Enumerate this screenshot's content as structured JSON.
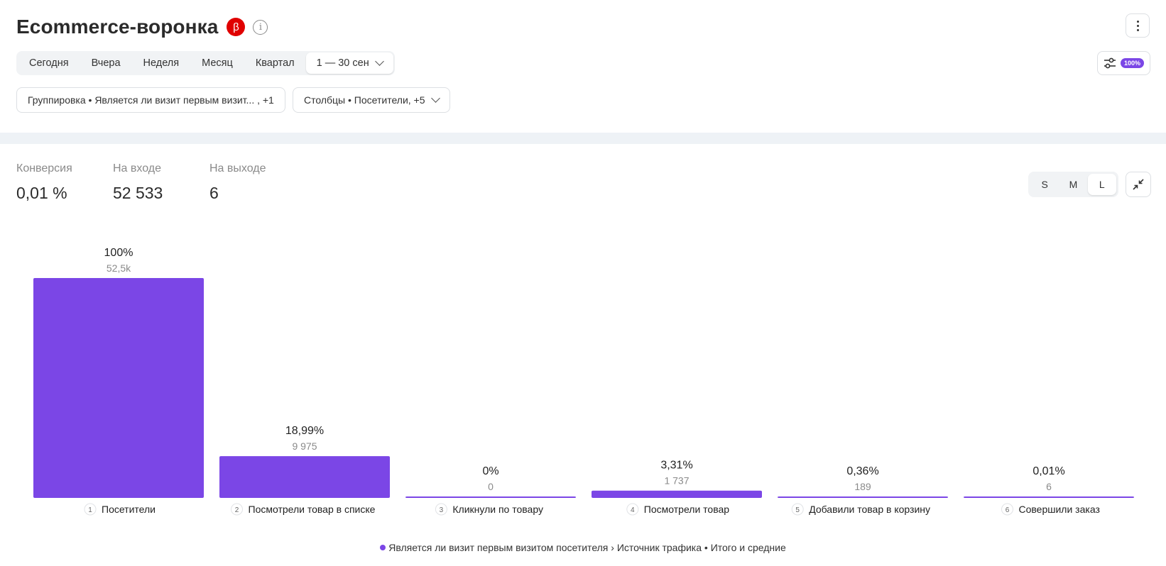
{
  "header": {
    "title": "Ecommerce-воронка",
    "beta_label": "β",
    "info_label": "i"
  },
  "period": {
    "options": [
      "Сегодня",
      "Вчера",
      "Неделя",
      "Месяц",
      "Квартал"
    ],
    "selected_range": "1 — 30 сен"
  },
  "settings": {
    "sampling_badge": "100%"
  },
  "filters": {
    "grouping": "Группировка • Является ли визит первым визит... , +1",
    "columns": "Столбцы • Посетители, +5"
  },
  "stats": [
    {
      "label": "Конверсия",
      "value": "0,01 %"
    },
    {
      "label": "На входе",
      "value": "52 533"
    },
    {
      "label": "На выходе",
      "value": "6"
    }
  ],
  "size_toggle": {
    "options": [
      "S",
      "M",
      "L"
    ],
    "selected": "L"
  },
  "chart_data": {
    "type": "bar",
    "categories": [
      "Посетители",
      "Посмотрели товар в списке",
      "Кликнули по товару",
      "Посмотрели товар",
      "Добавили товар в корзину",
      "Совершили заказ"
    ],
    "step_numbers": [
      "1",
      "2",
      "3",
      "4",
      "5",
      "6"
    ],
    "values": [
      52533,
      9975,
      0,
      1737,
      189,
      6
    ],
    "value_labels": [
      "52,5k",
      "9 975",
      "0",
      "1 737",
      "189",
      "6"
    ],
    "percent_labels": [
      "100%",
      "18,99%",
      "0%",
      "3,31%",
      "0,36%",
      "0,01%"
    ],
    "ylim": [
      0,
      52533
    ],
    "color": "#7b46e6",
    "legend": "Является ли визит первым визитом посетителя › Источник трафика • Итого и средние",
    "legend_position": "bottom"
  }
}
